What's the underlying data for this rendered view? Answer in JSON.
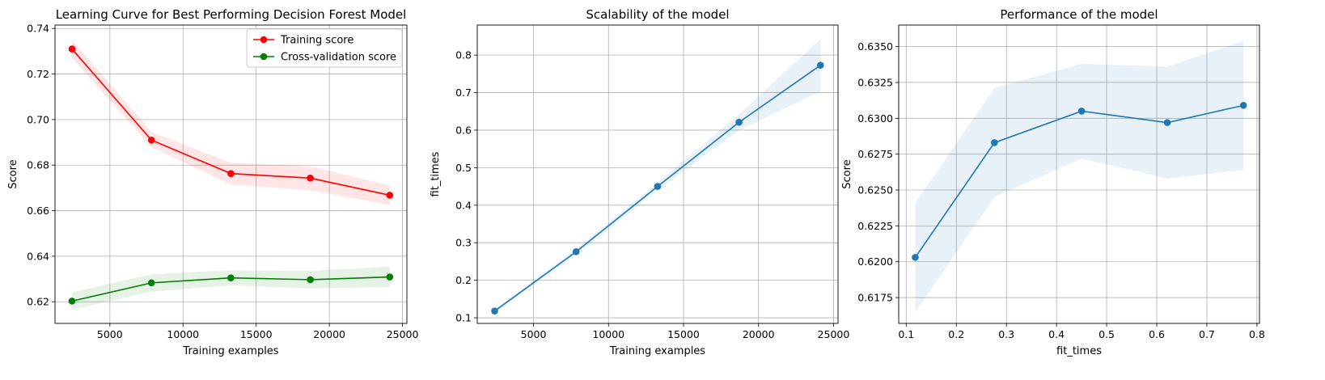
{
  "chart_data": [
    {
      "type": "line",
      "title": "Learning Curve for Best Performing Decision Forest Model",
      "xlabel": "Training examples",
      "ylabel": "Score",
      "xlim": [
        1250,
        25300
      ],
      "ylim": [
        0.6105,
        0.7415
      ],
      "xticks": [
        5000,
        10000,
        15000,
        20000,
        25000
      ],
      "xtick_labels": [
        "5000",
        "10000",
        "15000",
        "20000",
        "25000"
      ],
      "yticks": [
        0.62,
        0.64,
        0.66,
        0.68,
        0.7,
        0.72,
        0.74
      ],
      "ytick_labels": [
        "0.62",
        "0.64",
        "0.66",
        "0.68",
        "0.70",
        "0.72",
        "0.74"
      ],
      "grid": true,
      "legend": "upper right",
      "x": [
        2410,
        7840,
        13270,
        18700,
        24130
      ],
      "series": [
        {
          "name": "Training score",
          "color": "#ff0000",
          "values": [
            0.731,
            0.691,
            0.6763,
            0.6743,
            0.6668
          ],
          "lower": [
            0.727,
            0.688,
            0.6715,
            0.669,
            0.6625
          ],
          "upper": [
            0.735,
            0.6945,
            0.681,
            0.6795,
            0.671
          ]
        },
        {
          "name": "Cross-validation score",
          "color": "#008000",
          "values": [
            0.6203,
            0.6283,
            0.6305,
            0.6297,
            0.6309
          ],
          "lower": [
            0.6165,
            0.6245,
            0.6272,
            0.6258,
            0.6264
          ],
          "upper": [
            0.6241,
            0.6321,
            0.6338,
            0.6336,
            0.6354
          ]
        }
      ]
    },
    {
      "type": "line",
      "title": "Scalability of the model",
      "xlabel": "Training examples",
      "ylabel": "fit_times",
      "xlim": [
        1250,
        25300
      ],
      "ylim": [
        0.085,
        0.88
      ],
      "xticks": [
        5000,
        10000,
        15000,
        20000,
        25000
      ],
      "xtick_labels": [
        "5000",
        "10000",
        "15000",
        "20000",
        "25000"
      ],
      "yticks": [
        0.1,
        0.2,
        0.3,
        0.4,
        0.5,
        0.6,
        0.7,
        0.8
      ],
      "ytick_labels": [
        "0.1",
        "0.2",
        "0.3",
        "0.4",
        "0.5",
        "0.6",
        "0.7",
        "0.8"
      ],
      "grid": true,
      "x": [
        2410,
        7840,
        13270,
        18700,
        24130
      ],
      "series": [
        {
          "color": "#1f77b4",
          "values": [
            0.118,
            0.276,
            0.45,
            0.621,
            0.773
          ],
          "lower": [
            0.113,
            0.269,
            0.44,
            0.6,
            0.703
          ],
          "upper": [
            0.123,
            0.283,
            0.46,
            0.642,
            0.843
          ]
        }
      ]
    },
    {
      "type": "line",
      "title": "Performance of the model",
      "xlabel": "fit_times",
      "ylabel": "Score",
      "xlim": [
        0.085,
        0.805
      ],
      "ylim": [
        0.6157,
        0.6365
      ],
      "xticks": [
        0.1,
        0.2,
        0.3,
        0.4,
        0.5,
        0.6,
        0.7,
        0.8
      ],
      "xtick_labels": [
        "0.1",
        "0.2",
        "0.3",
        "0.4",
        "0.5",
        "0.6",
        "0.7",
        "0.8"
      ],
      "yticks": [
        0.6175,
        0.62,
        0.6225,
        0.625,
        0.6275,
        0.63,
        0.6325,
        0.635
      ],
      "ytick_labels": [
        "0.6175",
        "0.6200",
        "0.6225",
        "0.6250",
        "0.6275",
        "0.6300",
        "0.6325",
        "0.6350"
      ],
      "grid": true,
      "x": [
        0.118,
        0.276,
        0.45,
        0.621,
        0.773
      ],
      "series": [
        {
          "color": "#1f77b4",
          "values": [
            0.6203,
            0.6283,
            0.6305,
            0.6297,
            0.6309
          ],
          "lower": [
            0.6165,
            0.6245,
            0.6272,
            0.6258,
            0.6264
          ],
          "upper": [
            0.6241,
            0.6321,
            0.6338,
            0.6336,
            0.6354
          ]
        }
      ]
    }
  ]
}
